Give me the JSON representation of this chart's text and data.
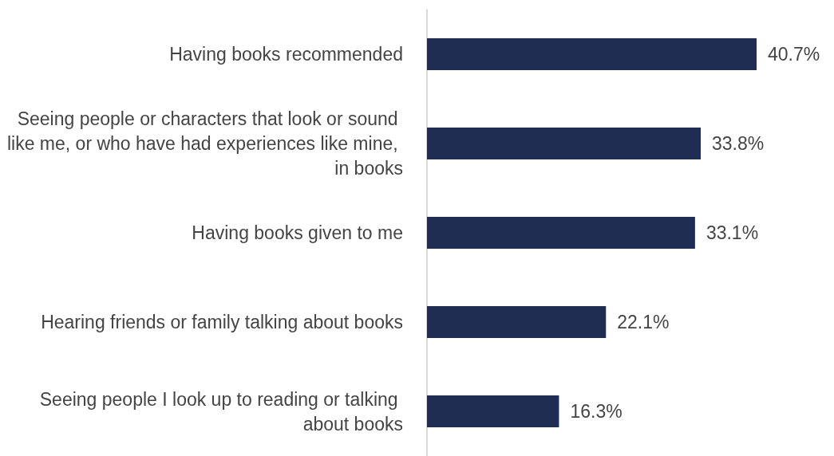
{
  "chart_data": {
    "type": "bar",
    "orientation": "horizontal",
    "categories": [
      "Having books recommended",
      "Seeing people or characters that look or sound like me, or who have had experiences like mine, in books",
      "Having books given to me",
      "Hearing friends or family talking about books",
      "Seeing people I look up to reading or talking about books"
    ],
    "values": [
      40.7,
      33.8,
      33.1,
      22.1,
      16.3
    ],
    "value_labels": [
      "40.7%",
      "33.8%",
      "33.1%",
      "22.1%",
      "16.3%"
    ],
    "color": "#1f2d52"
  }
}
